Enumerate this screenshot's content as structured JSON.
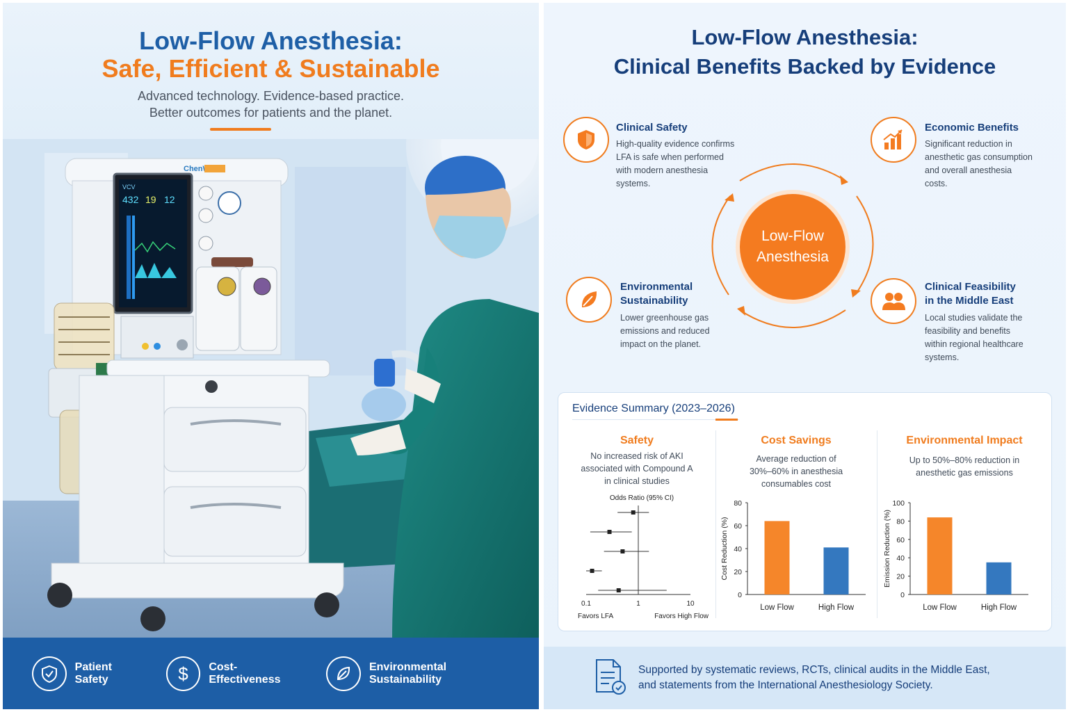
{
  "left": {
    "title_line1": "Low-Flow Anesthesia:",
    "title_line2": "Safe, Efficient & Sustainable",
    "subtitle_line1": "Advanced technology. Evidence-based practice.",
    "subtitle_line2": "Better outcomes for patients and the planet.",
    "machine_brand": "ChenWei",
    "monitor": {
      "mode": "VCV",
      "v1": "432",
      "v2": "19",
      "v3": "12"
    },
    "features": [
      {
        "label": "Patient Safety",
        "icon": "shield-check-icon"
      },
      {
        "label": "Cost-Effectiveness",
        "icon": "dollar-icon"
      },
      {
        "label": "Environmental Sustainability",
        "icon": "leaf-icon"
      }
    ]
  },
  "right": {
    "title_line1": "Low-Flow Anesthesia:",
    "title_line2": "Clinical Benefits Backed by Evidence",
    "center_line1": "Low-Flow",
    "center_line2": "Anesthesia",
    "benefits": [
      {
        "title_line1": "Clinical Safety",
        "title_line2": "",
        "icon": "shield-icon",
        "desc": [
          "High-quality evidence confirms",
          "LFA is safe when performed",
          "with modern anesthesia",
          "systems."
        ]
      },
      {
        "title_line1": "Economic Benefits",
        "title_line2": "",
        "icon": "growth-chart-icon",
        "desc": [
          "Significant reduction in",
          "anesthetic gas consumption",
          "and overall anesthesia",
          "costs."
        ]
      },
      {
        "title_line1": "Environmental",
        "title_line2": "Sustainability",
        "icon": "leaf-icon",
        "desc": [
          "Lower greenhouse gas",
          "emissions and reduced",
          "impact on the planet."
        ]
      },
      {
        "title_line1": "Clinical Feasibility",
        "title_line2": "in the Middle East",
        "icon": "people-icon",
        "desc": [
          "Local studies validate the",
          "feasibility and benefits",
          "within regional healthcare",
          "systems."
        ]
      }
    ],
    "evidence": {
      "heading": "Evidence Summary (2023–2026)",
      "safety": {
        "title": "Safety",
        "desc": [
          "No increased risk of AKI",
          "associated with Compound A",
          "in clinical studies"
        ]
      },
      "cost": {
        "title": "Cost Savings",
        "desc": [
          "Average reduction of",
          "30%–60% in anesthesia",
          "consumables cost"
        ]
      },
      "env": {
        "title": "Environmental Impact",
        "desc": [
          "Up to 50%–80% reduction in",
          "anesthetic gas emissions"
        ]
      }
    },
    "footer_line1": "Supported by systematic reviews, RCTs, clinical audits in the Middle East,",
    "footer_line2": "and statements from the International Anesthesiology Society."
  },
  "colors": {
    "accent": "#f07c1e",
    "navy": "#163e7a",
    "blue": "#1d5ea6",
    "bar_orange": "#f5862a",
    "bar_blue": "#3478bf"
  },
  "chart_data": [
    {
      "type": "scatter",
      "title": "Odds Ratio (95% CI)",
      "xscale": "log",
      "xlim": [
        0.1,
        10
      ],
      "xticks": [
        "0.1",
        "1",
        "10"
      ],
      "xlabel_left": "Favors LFA",
      "xlabel_right": "Favors High Flow",
      "points": [
        {
          "or": 0.8,
          "lo": 0.4,
          "hi": 1.6
        },
        {
          "or": 0.28,
          "lo": 0.12,
          "hi": 0.75
        },
        {
          "or": 0.5,
          "lo": 0.22,
          "hi": 1.6
        },
        {
          "or": 0.13,
          "lo": 0.1,
          "hi": 0.2
        },
        {
          "or": 0.42,
          "lo": 0.17,
          "hi": 3.5
        }
      ]
    },
    {
      "type": "bar",
      "categories": [
        "Low Flow",
        "High Flow"
      ],
      "values": [
        64,
        41
      ],
      "ylabel": "Cost Reduction (%)",
      "ylim": [
        0,
        80
      ],
      "yticks": [
        "0",
        "20",
        "40",
        "60",
        "80"
      ]
    },
    {
      "type": "bar",
      "categories": [
        "Low Flow",
        "High Flow"
      ],
      "values": [
        84,
        35
      ],
      "ylabel": "Emission Reduction (%)",
      "ylim": [
        0,
        100
      ],
      "yticks": [
        "0",
        "20",
        "40",
        "60",
        "80",
        "100"
      ]
    }
  ]
}
